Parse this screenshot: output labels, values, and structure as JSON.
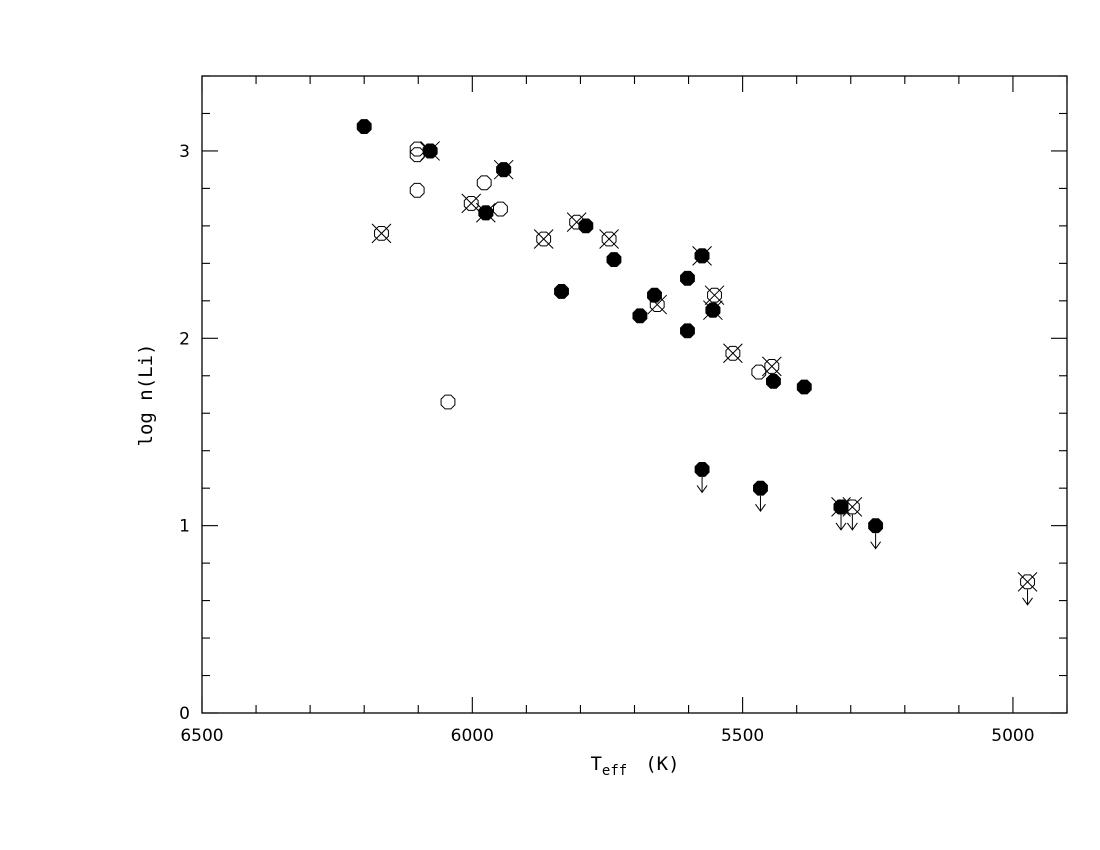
{
  "chart_data": {
    "type": "scatter",
    "title": "",
    "xlabel": "T",
    "xlabel_sub": "eff",
    "xlabel_unit": "(K)",
    "ylabel": "log  n(Li)",
    "xlim": [
      6500,
      4900
    ],
    "ylim": [
      0,
      3.4
    ],
    "x_reversed": true,
    "grid": false,
    "x_ticks": [
      6500,
      6000,
      5500,
      5000
    ],
    "x_tick_labels": [
      "6500",
      "6000",
      "5500",
      "5000"
    ],
    "y_ticks": [
      0,
      1,
      2,
      3
    ],
    "y_tick_labels": [
      "0",
      "1",
      "2",
      "3"
    ],
    "marker_styles": [
      "filled",
      "open",
      "open-x",
      "filled-x"
    ],
    "series": [
      {
        "marker": "filled",
        "points": [
          {
            "x": 6200,
            "y": 3.13
          },
          {
            "x": 6078,
            "y": 3.0
          },
          {
            "x": 5975,
            "y": 2.67
          },
          {
            "x": 5942,
            "y": 2.9
          },
          {
            "x": 5835,
            "y": 2.25
          },
          {
            "x": 5790,
            "y": 2.6
          },
          {
            "x": 5738,
            "y": 2.42
          },
          {
            "x": 5690,
            "y": 2.12
          },
          {
            "x": 5663,
            "y": 2.23
          },
          {
            "x": 5602,
            "y": 2.32
          },
          {
            "x": 5602,
            "y": 2.04
          },
          {
            "x": 5575,
            "y": 2.44
          },
          {
            "x": 5555,
            "y": 2.15
          },
          {
            "x": 5443,
            "y": 1.77
          },
          {
            "x": 5386,
            "y": 1.74
          },
          {
            "x": 5575,
            "y": 1.3,
            "upper_limit": true
          },
          {
            "x": 5467,
            "y": 1.2,
            "upper_limit": true
          },
          {
            "x": 5318,
            "y": 1.1,
            "upper_limit": true
          },
          {
            "x": 5254,
            "y": 1.0,
            "upper_limit": true
          }
        ]
      },
      {
        "marker": "open",
        "points": [
          {
            "x": 6102,
            "y": 3.01
          },
          {
            "x": 6102,
            "y": 2.98
          },
          {
            "x": 6102,
            "y": 2.79
          },
          {
            "x": 6045,
            "y": 1.66
          },
          {
            "x": 5978,
            "y": 2.83
          },
          {
            "x": 5948,
            "y": 2.69
          },
          {
            "x": 5470,
            "y": 1.82
          }
        ]
      },
      {
        "marker": "open-x",
        "points": [
          {
            "x": 6168,
            "y": 2.56
          },
          {
            "x": 6002,
            "y": 2.72
          },
          {
            "x": 5868,
            "y": 2.53
          },
          {
            "x": 5807,
            "y": 2.62
          },
          {
            "x": 5747,
            "y": 2.53
          },
          {
            "x": 5658,
            "y": 2.18
          },
          {
            "x": 5552,
            "y": 2.23
          },
          {
            "x": 5518,
            "y": 1.92
          },
          {
            "x": 5446,
            "y": 1.85
          },
          {
            "x": 5297,
            "y": 1.1,
            "upper_limit": true
          },
          {
            "x": 4973,
            "y": 0.7,
            "upper_limit": true
          }
        ]
      },
      {
        "marker": "filled-x",
        "points": [
          {
            "x": 6078,
            "y": 3.0
          },
          {
            "x": 5942,
            "y": 2.9
          },
          {
            "x": 5975,
            "y": 2.67
          },
          {
            "x": 5575,
            "y": 2.44
          },
          {
            "x": 5555,
            "y": 2.15
          },
          {
            "x": 5318,
            "y": 1.1
          }
        ]
      }
    ]
  }
}
